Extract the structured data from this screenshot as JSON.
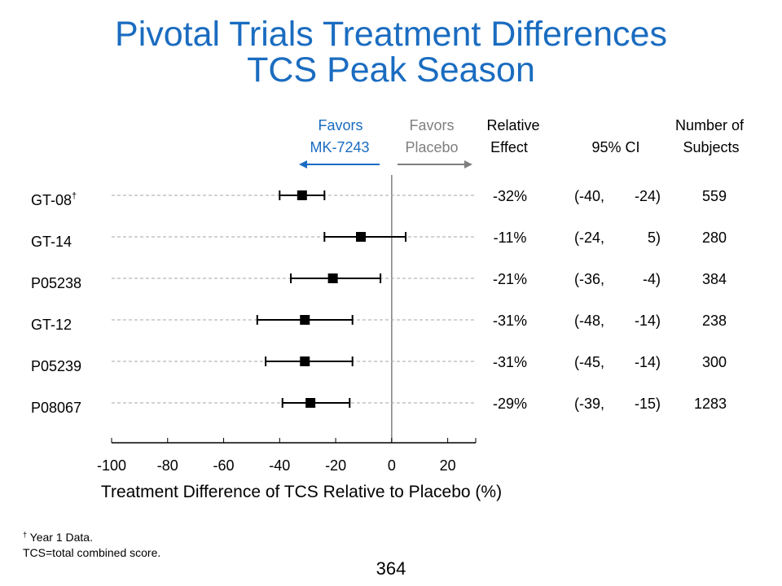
{
  "title": {
    "line1": "Pivotal Trials Treatment Differences",
    "line2": "TCS Peak Season"
  },
  "chart_data": {
    "type": "forest",
    "xlabel": "Treatment Difference of TCS Relative to Placebo (%)",
    "xlim": [
      -100,
      30
    ],
    "xticks": [
      -100,
      -80,
      -60,
      -40,
      -20,
      0,
      20
    ],
    "favors_left": [
      "Favors",
      "MK-7243"
    ],
    "favors_right": [
      "Favors",
      "Placebo"
    ],
    "columns": {
      "relative_effect": [
        "Relative",
        "Effect"
      ],
      "ci": "95% CI",
      "subjects": [
        "Number of",
        "Subjects"
      ]
    },
    "trials": [
      {
        "name": "GT-08",
        "marker": "†",
        "estimate": -32,
        "ci_low": -40,
        "ci_high": -24,
        "effect_label": "-32%",
        "ci_low_label": "(-40,",
        "ci_high_label": "-24)",
        "subjects": "559"
      },
      {
        "name": "GT-14",
        "marker": "",
        "estimate": -11,
        "ci_low": -24,
        "ci_high": 5,
        "effect_label": "-11%",
        "ci_low_label": "(-24,",
        "ci_high_label": "5)",
        "subjects": "280"
      },
      {
        "name": "P05238",
        "marker": "",
        "estimate": -21,
        "ci_low": -36,
        "ci_high": -4,
        "effect_label": "-21%",
        "ci_low_label": "(-36,",
        "ci_high_label": "-4)",
        "subjects": "384"
      },
      {
        "name": "GT-12",
        "marker": "",
        "estimate": -31,
        "ci_low": -48,
        "ci_high": -14,
        "effect_label": "-31%",
        "ci_low_label": "(-48,",
        "ci_high_label": "-14)",
        "subjects": "238"
      },
      {
        "name": "P05239",
        "marker": "",
        "estimate": -31,
        "ci_low": -45,
        "ci_high": -14,
        "effect_label": "-31%",
        "ci_low_label": "(-45,",
        "ci_high_label": "-14)",
        "subjects": "300"
      },
      {
        "name": "P08067",
        "marker": "",
        "estimate": -29,
        "ci_low": -39,
        "ci_high": -15,
        "effect_label": "-29%",
        "ci_low_label": "(-39,",
        "ci_high_label": "-15)",
        "subjects": "1283"
      }
    ],
    "colors": {
      "favors_drug": "#1a6cc0",
      "favors_placebo": "#7f7f7f",
      "guide_line": "#a6a6a6"
    }
  },
  "footnotes": {
    "marker": "†",
    "line1": "Year 1 Data.",
    "line2": "TCS=total combined score."
  },
  "page_number": "364"
}
